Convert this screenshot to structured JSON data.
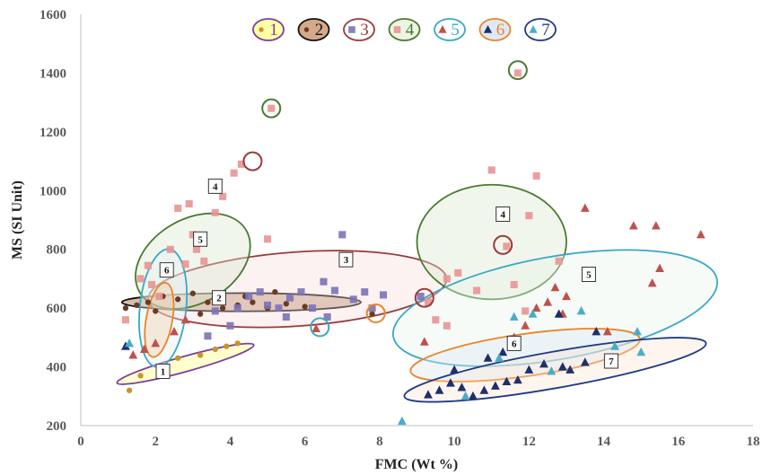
{
  "chart_data": {
    "type": "scatter",
    "title": "",
    "xlabel": "FMC (Wt %)",
    "ylabel": "MS (SI Unit)",
    "xlim": [
      0,
      18
    ],
    "ylim": [
      200,
      1600
    ],
    "xticks": [
      0,
      2,
      4,
      6,
      8,
      10,
      12,
      14,
      16,
      18
    ],
    "yticks": [
      200,
      400,
      600,
      800,
      1000,
      1200,
      1400,
      1600
    ],
    "grid": false,
    "legend_position": "top-center",
    "legend": [
      {
        "label": "1",
        "marker": "circle",
        "color": "#c8942c",
        "ring": "#7b3fa0",
        "fill": "#ffffa6"
      },
      {
        "label": "2",
        "marker": "circle",
        "color": "#6b3b22",
        "ring": "#111111",
        "fill": "#d4aa8a"
      },
      {
        "label": "3",
        "marker": "square",
        "color": "#7b73b5",
        "ring": "#9b3a3a",
        "fill": "#ffffff"
      },
      {
        "label": "4",
        "marker": "square",
        "color": "#e99494",
        "ring": "#4a7a30",
        "fill": "#eef4e4"
      },
      {
        "label": "5",
        "marker": "triangle",
        "color": "#c0504d",
        "ring": "#3aa7c4",
        "fill": "#ffffff"
      },
      {
        "label": "6",
        "marker": "triangle",
        "color": "#1f2f6b",
        "ring": "#e8852a",
        "fill": "#dfe9f5"
      },
      {
        "label": "7",
        "marker": "triangle",
        "color": "#4bacc6",
        "ring": "#1f3b82",
        "fill": "#ffffff"
      }
    ],
    "series": [
      {
        "name": "1",
        "marker": "circle",
        "color": "#c8942c",
        "x": [
          1.3,
          2.3,
          2.6,
          3.2,
          3.6,
          3.9,
          4.2,
          1.6
        ],
        "y": [
          320,
          400,
          430,
          440,
          460,
          470,
          480,
          370
        ]
      },
      {
        "name": "2",
        "marker": "circle",
        "color": "#6b3b22",
        "x": [
          1.2,
          1.5,
          1.8,
          2.2,
          2.6,
          3.0,
          3.4,
          3.8,
          4.2,
          4.6,
          5.0,
          5.5,
          6.0,
          2.0,
          3.2,
          4.4,
          5.2,
          7.8
        ],
        "y": [
          600,
          610,
          620,
          640,
          630,
          650,
          620,
          600,
          610,
          620,
          600,
          615,
          605,
          590,
          580,
          640,
          655,
          580
        ]
      },
      {
        "name": "3",
        "marker": "square",
        "color": "#7b73b5",
        "x": [
          3.6,
          4.2,
          4.5,
          4.8,
          5.0,
          5.3,
          5.6,
          5.9,
          6.2,
          6.5,
          6.8,
          7.0,
          7.3,
          7.6,
          7.8,
          8.1,
          4.0,
          5.5,
          6.6,
          3.4,
          9.1
        ],
        "y": [
          590,
          600,
          640,
          655,
          610,
          600,
          635,
          655,
          600,
          690,
          660,
          850,
          630,
          655,
          600,
          645,
          540,
          570,
          570,
          505,
          640
        ]
      },
      {
        "name": "4",
        "marker": "square",
        "color": "#e99494",
        "x": [
          1.2,
          1.6,
          1.8,
          2.1,
          2.4,
          2.6,
          2.9,
          3.1,
          3.3,
          3.6,
          3.8,
          4.1,
          4.3,
          1.9,
          2.3,
          2.8,
          3.0,
          5.0,
          5.1,
          9.3,
          9.5,
          9.8,
          10.1,
          10.6,
          11.0,
          11.4,
          11.7,
          12.0,
          12.2,
          11.6,
          12.8,
          11.9,
          9.8
        ],
        "y": [
          560,
          700,
          745,
          640,
          800,
          940,
          955,
          800,
          760,
          925,
          980,
          1060,
          1090,
          680,
          720,
          750,
          850,
          835,
          1280,
          620,
          560,
          700,
          720,
          660,
          1070,
          810,
          1400,
          915,
          1050,
          680,
          760,
          590,
          540
        ]
      },
      {
        "name": "5",
        "marker": "triangle",
        "color": "#c0504d",
        "x": [
          1.4,
          1.7,
          2.0,
          2.5,
          2.8,
          9.2,
          11.6,
          12.2,
          12.5,
          12.7,
          12.9,
          13.0,
          13.5,
          14.1,
          14.8,
          15.3,
          15.4,
          15.5,
          16.6,
          11.9,
          6.3
        ],
        "y": [
          440,
          460,
          480,
          520,
          560,
          485,
          500,
          600,
          620,
          670,
          580,
          640,
          940,
          520,
          880,
          685,
          880,
          735,
          850,
          540,
          530
        ]
      },
      {
        "name": "6",
        "marker": "triangle",
        "color": "#1f2f6b",
        "x": [
          1.2,
          9.3,
          9.6,
          9.9,
          10.2,
          10.5,
          10.8,
          11.1,
          11.4,
          11.7,
          12.0,
          12.4,
          12.8,
          13.1,
          13.5,
          13.8,
          10.0,
          10.9,
          12.9,
          11.3
        ],
        "y": [
          470,
          305,
          320,
          345,
          330,
          300,
          320,
          335,
          350,
          355,
          390,
          410,
          580,
          390,
          415,
          520,
          390,
          430,
          400,
          450
        ]
      },
      {
        "name": "7",
        "marker": "triangle",
        "color": "#4bacc6",
        "x": [
          1.3,
          8.6,
          10.3,
          11.2,
          12.1,
          13.4,
          14.3,
          14.9,
          15.0,
          11.6,
          12.6
        ],
        "y": [
          480,
          215,
          300,
          430,
          580,
          590,
          470,
          520,
          450,
          570,
          385
        ]
      }
    ],
    "groups": [
      {
        "id": "1",
        "label": "1",
        "label_pos": [
          2.2,
          385
        ],
        "stroke": "#7b3fa0",
        "fill": "#ffffa6",
        "fill_opacity": 0.55,
        "ellipse": {
          "cx": 2.8,
          "cy": 410,
          "rx": 1.9,
          "ry": 26,
          "rot": -15.5
        }
      },
      {
        "id": "2",
        "label": "2",
        "label_pos": [
          3.7,
          635
        ],
        "stroke": "#111111",
        "fill": "#a86d46",
        "fill_opacity": 0.45,
        "ellipse": {
          "cx": 4.3,
          "cy": 620,
          "rx": 3.2,
          "ry": 31,
          "rot": 0
        }
      },
      {
        "id": "3",
        "label": "3",
        "label_pos": [
          7.1,
          765
        ],
        "stroke": "#9b3a3a",
        "fill": "#f6d9d9",
        "fill_opacity": 0.35,
        "ellipse": {
          "cx": 5.8,
          "cy": 665,
          "rx": 4.0,
          "ry": 126,
          "rot": -4
        }
      },
      {
        "id": "4a",
        "label": "4",
        "label_pos": [
          3.6,
          1015
        ],
        "stroke": "#4a7a30",
        "fill": "#dbe8cf",
        "fill_opacity": 0.4,
        "ellipse": {
          "cx": 3.0,
          "cy": 760,
          "rx": 1.65,
          "ry": 143,
          "rot": -30
        }
      },
      {
        "id": "4b",
        "label": "4",
        "label_pos": [
          11.3,
          920
        ],
        "stroke": "#4a7a30",
        "fill": "#dbe8cf",
        "fill_opacity": 0.4,
        "ellipse": {
          "cx": 11.0,
          "cy": 825,
          "rx": 2.0,
          "ry": 195,
          "rot": 0
        }
      },
      {
        "id": "5a",
        "label": "5",
        "label_pos": [
          3.2,
          835
        ],
        "stroke": "#3aa7c4",
        "fill": "#dff1f7",
        "fill_opacity": 0.35,
        "ellipse": {
          "cx": 2.2,
          "cy": 600,
          "rx": 0.62,
          "ry": 202,
          "rot": 6
        }
      },
      {
        "id": "5b",
        "label": "5",
        "label_pos": [
          13.6,
          715
        ],
        "stroke": "#3aa7c4",
        "fill": "#e9f4ea",
        "fill_opacity": 0.4,
        "ellipse": {
          "cx": 12.7,
          "cy": 600,
          "rx": 4.4,
          "ry": 175,
          "rot": -10
        }
      },
      {
        "id": "6a",
        "label": "6",
        "label_pos": [
          2.3,
          730
        ],
        "stroke": "#e8852a",
        "fill": "#f3c69a",
        "fill_opacity": 0.35,
        "ellipse": {
          "cx": 2.1,
          "cy": 560,
          "rx": 0.35,
          "ry": 128,
          "rot": 10
        }
      },
      {
        "id": "6b",
        "label": "6",
        "label_pos": [
          11.6,
          480
        ],
        "stroke": "#e8852a",
        "fill": "#dfe9f5",
        "fill_opacity": 0.4,
        "ellipse": {
          "cx": 11.9,
          "cy": 440,
          "rx": 3.1,
          "ry": 72,
          "rot": -8
        }
      },
      {
        "id": "7",
        "label": "7",
        "label_pos": [
          14.2,
          420
        ],
        "stroke": "#1f3b82",
        "fill": "#f8e1cf",
        "fill_opacity": 0.35,
        "ellipse": {
          "cx": 12.7,
          "cy": 390,
          "rx": 4.1,
          "ry": 62,
          "rot": -10
        }
      }
    ],
    "outliers": [
      {
        "x": 4.6,
        "y": 1100,
        "color": "#9b3a3a"
      },
      {
        "x": 5.1,
        "y": 1280,
        "color": "#4a7a30"
      },
      {
        "x": 11.7,
        "y": 1410,
        "color": "#4a7a30"
      },
      {
        "x": 11.3,
        "y": 815,
        "color": "#9b3a3a"
      },
      {
        "x": 9.2,
        "y": 635,
        "color": "#9b3a3a"
      },
      {
        "x": 6.4,
        "y": 535,
        "color": "#3aa7c4"
      },
      {
        "x": 7.9,
        "y": 582,
        "color": "#e8852a"
      }
    ]
  }
}
